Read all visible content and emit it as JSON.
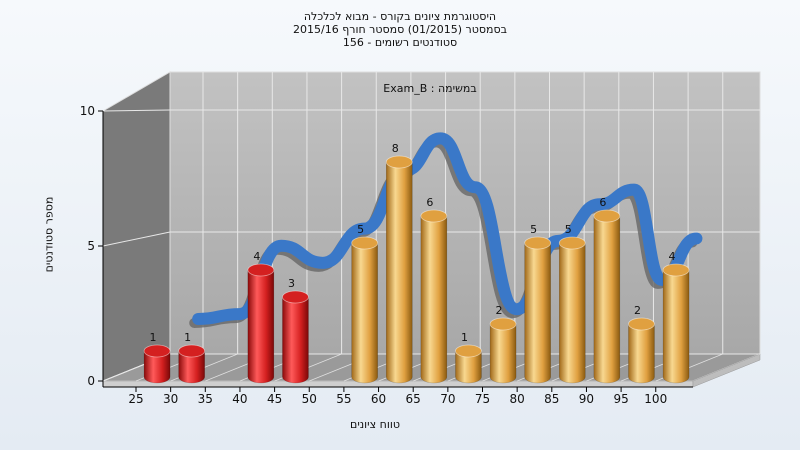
{
  "chart_data": {
    "type": "bar",
    "title_lines": [
      "היסטוגרמת ציונים בקורס - מבוא לכלכלה",
      "בסמסטר  (01/2015)  סמסטר חורף 2015/16",
      "סטודנטים רשומים - 156"
    ],
    "subtitle": "Exam_B : במשימה",
    "xlabel": "טווח ציונים",
    "ylabel": "מספר סטודנטים",
    "x_ticks": [
      "25",
      "30",
      "35",
      "40",
      "45",
      "50",
      "55",
      "60",
      "65",
      "70",
      "75",
      "80",
      "85",
      "90",
      "95",
      "100"
    ],
    "y_ticks": [
      "0",
      "5",
      "10"
    ],
    "ylim": [
      0,
      10
    ],
    "bars": [
      {
        "x": 27.5,
        "value": 1,
        "label": "1",
        "color": "#d42020"
      },
      {
        "x": 32.5,
        "value": 1,
        "label": "1",
        "color": "#d42020"
      },
      {
        "x": 42.5,
        "value": 4,
        "label": "4",
        "color": "#d42020"
      },
      {
        "x": 47.5,
        "value": 3,
        "label": "3",
        "color": "#d42020"
      },
      {
        "x": 57.5,
        "value": 5,
        "label": "5",
        "color": "#e0a040"
      },
      {
        "x": 62.5,
        "value": 8,
        "label": "8",
        "color": "#e0a040"
      },
      {
        "x": 67.5,
        "value": 6,
        "label": "6",
        "color": "#e0a040"
      },
      {
        "x": 72.5,
        "value": 1,
        "label": "1",
        "color": "#e0a040"
      },
      {
        "x": 77.5,
        "value": 2,
        "label": "2",
        "color": "#e0a040"
      },
      {
        "x": 82.5,
        "value": 5,
        "label": "5",
        "color": "#e0a040"
      },
      {
        "x": 87.5,
        "value": 5,
        "label": "5",
        "color": "#e0a040"
      },
      {
        "x": 92.5,
        "value": 6,
        "label": "6",
        "color": "#e0a040"
      },
      {
        "x": 97.5,
        "value": 2,
        "label": "2",
        "color": "#e0a040"
      },
      {
        "x": 102.5,
        "value": 4,
        "label": "4",
        "color": "#e0a040"
      }
    ],
    "distribution_curve": {
      "color": "#3a78c8",
      "points": [
        [
          32,
          1.6
        ],
        [
          38,
          1.8
        ],
        [
          44,
          4.6
        ],
        [
          50,
          3.9
        ],
        [
          56,
          5.3
        ],
        [
          62,
          7.7
        ],
        [
          67,
          9.0
        ],
        [
          72,
          7.0
        ],
        [
          78,
          2.0
        ],
        [
          84,
          4.8
        ],
        [
          90,
          6.3
        ],
        [
          95,
          6.9
        ],
        [
          99,
          3.2
        ],
        [
          104,
          4.9
        ]
      ]
    },
    "grid": true,
    "colors": {
      "wall": "#b5b5b5",
      "side_wall": "#7a7a7a",
      "floor": "#9a9a9a"
    }
  }
}
